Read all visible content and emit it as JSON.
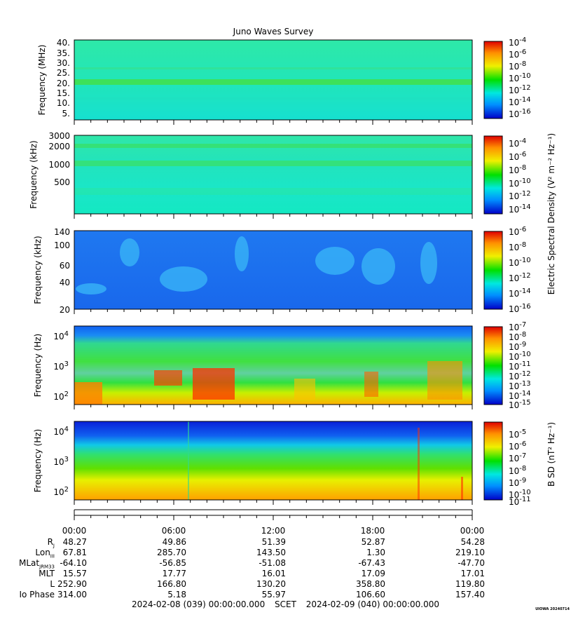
{
  "title": "Juno Waves Survey",
  "panels": [
    {
      "ylabel": "Frequency (MHz)",
      "yticks": [
        "40.",
        "35.",
        "30.",
        "25.",
        "20.",
        "15.",
        "10.",
        "5."
      ],
      "colorbar": {
        "ticks": [
          "10^-4",
          "10^-6",
          "10^-8",
          "10^-10",
          "10^-12",
          "10^-14",
          "10^-16"
        ]
      }
    },
    {
      "ylabel": "Frequency (kHz)",
      "yticks": [
        "3000",
        "2000",
        "1000",
        "500"
      ],
      "colorbar": {
        "ticks": [
          "10^-4",
          "10^-6",
          "10^-8",
          "10^-10",
          "10^-12",
          "10^-14"
        ]
      }
    },
    {
      "ylabel": "Frequency (kHz)",
      "yticks": [
        "140",
        "100",
        "60",
        "40",
        "20"
      ],
      "colorbar": {
        "ticks": [
          "10^-6",
          "10^-8",
          "10^-10",
          "10^-12",
          "10^-14",
          "10^-16"
        ]
      }
    },
    {
      "ylabel": "Frequency (Hz)",
      "yticks": [
        "10^4",
        "10^3",
        "10^2"
      ],
      "colorbar": {
        "ticks": [
          "10^-7",
          "10^-8",
          "10^-9",
          "10^-10",
          "10^-11",
          "10^-12",
          "10^-13",
          "10^-14",
          "10^-15"
        ]
      }
    },
    {
      "ylabel": "Frequency (Hz)",
      "yticks": [
        "10^4",
        "10^3",
        "10^2"
      ],
      "colorbar": {
        "ticks": [
          "10^-5",
          "10^-6",
          "10^-7",
          "10^-8",
          "10^-9",
          "10^-10",
          "10^-11"
        ]
      }
    }
  ],
  "colorbar_labels": {
    "electric": "Electric Spectral Density (V^2 m^-2 Hz^-1)",
    "magnetic": "B SD (nT^2 Hz^-1)"
  },
  "colors": {
    "blue": "#0000cc",
    "cyan": "#00e5d4",
    "green": "#00e000",
    "yellow": "#f5f000",
    "orange": "#ff8c00",
    "red": "#e00000"
  },
  "time_ticks": [
    "00:00",
    "06:00",
    "12:00",
    "18:00",
    "00:00"
  ],
  "ephemeris": {
    "rows": [
      {
        "label": "R",
        "sub": "J",
        "values": [
          "48.27",
          "49.86",
          "51.39",
          "52.87",
          "54.28"
        ]
      },
      {
        "label": "Lon",
        "sub": "III",
        "values": [
          "67.81",
          "285.70",
          "143.50",
          "1.30",
          "219.10"
        ]
      },
      {
        "label": "MLat",
        "sub": "JRM33",
        "values": [
          "-64.10",
          "-56.85",
          "-51.08",
          "-67.43",
          "-47.70"
        ]
      },
      {
        "label": "MLT",
        "sub": "",
        "values": [
          "15.57",
          "17.77",
          "16.01",
          "17.09",
          "17.01"
        ]
      },
      {
        "label": "L",
        "sub": "",
        "values": [
          "252.90",
          "166.80",
          "130.20",
          "358.80",
          "119.80"
        ]
      },
      {
        "label": "Io Phase",
        "sub": "",
        "values": [
          "314.00",
          "5.18",
          "55.97",
          "106.60",
          "157.40"
        ]
      }
    ]
  },
  "footer": {
    "start": "2024-02-08 (039) 00:00:00.000",
    "mid": "SCET",
    "end": "2024-02-09 (040) 00:00:00.000"
  },
  "stamp": "UIOWA 20240714",
  "chart_data": {
    "type": "heatmap",
    "title": "Juno Waves Survey",
    "x_range": [
      "2024-02-08 00:00",
      "2024-02-09 00:00"
    ],
    "panels": [
      {
        "ylabel": "Frequency (MHz)",
        "ylim": [
          3,
          41
        ],
        "colorbar_range": [
          "10^-16",
          "10^-4"
        ]
      },
      {
        "ylabel": "Frequency (kHz)",
        "ylim": [
          140,
          3000
        ],
        "yscale": "log",
        "colorbar_range": [
          "10^-14",
          "10^-4"
        ]
      },
      {
        "ylabel": "Frequency (kHz)",
        "ylim": [
          20,
          140
        ],
        "yscale": "log",
        "colorbar_range": [
          "10^-16",
          "10^-6"
        ]
      },
      {
        "ylabel": "Frequency (Hz)",
        "ylim": [
          50,
          20000
        ],
        "yscale": "log",
        "colorbar_range": [
          "10^-15",
          "10^-7"
        ]
      },
      {
        "ylabel": "Frequency (Hz)",
        "ylim": [
          50,
          20000
        ],
        "yscale": "log",
        "colorbar_range": [
          "10^-11",
          "10^-5"
        ]
      }
    ]
  }
}
